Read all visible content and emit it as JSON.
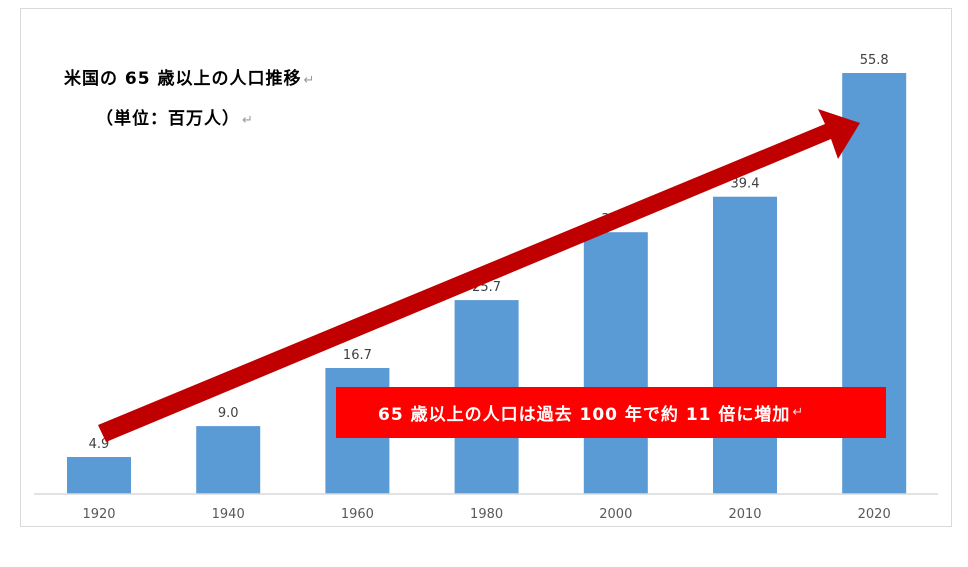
{
  "title": {
    "line1": "米国の 65 歳以上の人口推移",
    "line2": "（単位：百万人）",
    "return_mark": "↵"
  },
  "callout": {
    "text": "65 歳以上の人口は過去 100 年で約 11 倍に増加",
    "return_mark": "↵"
  },
  "colors": {
    "bar": "#5b9bd5",
    "arrow": "#c00000",
    "callout_bg": "#ff0000"
  },
  "chart_data": {
    "type": "bar",
    "categories": [
      "1920",
      "1940",
      "1960",
      "1980",
      "2000",
      "2010",
      "2020"
    ],
    "values": [
      4.9,
      9.0,
      16.7,
      25.7,
      34.7,
      39.4,
      55.8
    ],
    "data_labels": [
      "4.9",
      "9.0",
      "16.7",
      "25.7",
      "34.7",
      "39.4",
      "55.8"
    ],
    "title": "米国の 65 歳以上の人口推移",
    "subtitle": "（単位：百万人）",
    "ylim": [
      0,
      55.8
    ],
    "grid": false,
    "legend": "none"
  }
}
